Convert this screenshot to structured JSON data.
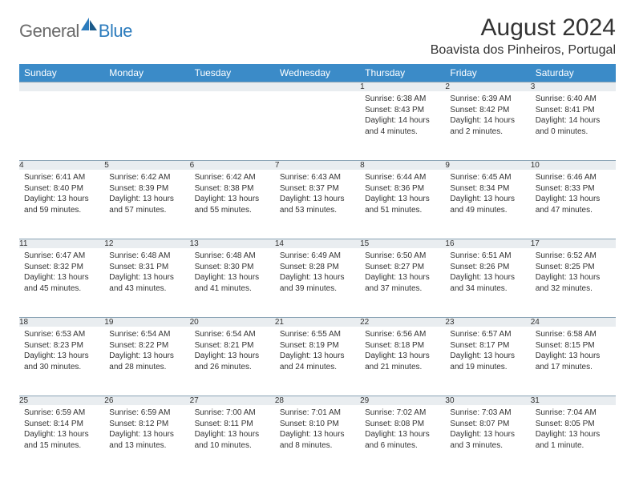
{
  "logo": {
    "general": "General",
    "blue": "Blue"
  },
  "title": "August 2024",
  "location": "Boavista dos Pinheiros, Portugal",
  "colors": {
    "header_bg": "#3b8bc8",
    "header_text": "#ffffff",
    "daynum_bg": "#e9edf0",
    "border": "#8aa3b5",
    "logo_gray": "#6a6a6a",
    "logo_blue": "#2b7bbd"
  },
  "weekdays": [
    "Sunday",
    "Monday",
    "Tuesday",
    "Wednesday",
    "Thursday",
    "Friday",
    "Saturday"
  ],
  "weeks": [
    [
      {
        "day": "",
        "lines": []
      },
      {
        "day": "",
        "lines": []
      },
      {
        "day": "",
        "lines": []
      },
      {
        "day": "",
        "lines": []
      },
      {
        "day": "1",
        "lines": [
          "Sunrise: 6:38 AM",
          "Sunset: 8:43 PM",
          "Daylight: 14 hours and 4 minutes."
        ]
      },
      {
        "day": "2",
        "lines": [
          "Sunrise: 6:39 AM",
          "Sunset: 8:42 PM",
          "Daylight: 14 hours and 2 minutes."
        ]
      },
      {
        "day": "3",
        "lines": [
          "Sunrise: 6:40 AM",
          "Sunset: 8:41 PM",
          "Daylight: 14 hours and 0 minutes."
        ]
      }
    ],
    [
      {
        "day": "4",
        "lines": [
          "Sunrise: 6:41 AM",
          "Sunset: 8:40 PM",
          "Daylight: 13 hours and 59 minutes."
        ]
      },
      {
        "day": "5",
        "lines": [
          "Sunrise: 6:42 AM",
          "Sunset: 8:39 PM",
          "Daylight: 13 hours and 57 minutes."
        ]
      },
      {
        "day": "6",
        "lines": [
          "Sunrise: 6:42 AM",
          "Sunset: 8:38 PM",
          "Daylight: 13 hours and 55 minutes."
        ]
      },
      {
        "day": "7",
        "lines": [
          "Sunrise: 6:43 AM",
          "Sunset: 8:37 PM",
          "Daylight: 13 hours and 53 minutes."
        ]
      },
      {
        "day": "8",
        "lines": [
          "Sunrise: 6:44 AM",
          "Sunset: 8:36 PM",
          "Daylight: 13 hours and 51 minutes."
        ]
      },
      {
        "day": "9",
        "lines": [
          "Sunrise: 6:45 AM",
          "Sunset: 8:34 PM",
          "Daylight: 13 hours and 49 minutes."
        ]
      },
      {
        "day": "10",
        "lines": [
          "Sunrise: 6:46 AM",
          "Sunset: 8:33 PM",
          "Daylight: 13 hours and 47 minutes."
        ]
      }
    ],
    [
      {
        "day": "11",
        "lines": [
          "Sunrise: 6:47 AM",
          "Sunset: 8:32 PM",
          "Daylight: 13 hours and 45 minutes."
        ]
      },
      {
        "day": "12",
        "lines": [
          "Sunrise: 6:48 AM",
          "Sunset: 8:31 PM",
          "Daylight: 13 hours and 43 minutes."
        ]
      },
      {
        "day": "13",
        "lines": [
          "Sunrise: 6:48 AM",
          "Sunset: 8:30 PM",
          "Daylight: 13 hours and 41 minutes."
        ]
      },
      {
        "day": "14",
        "lines": [
          "Sunrise: 6:49 AM",
          "Sunset: 8:28 PM",
          "Daylight: 13 hours and 39 minutes."
        ]
      },
      {
        "day": "15",
        "lines": [
          "Sunrise: 6:50 AM",
          "Sunset: 8:27 PM",
          "Daylight: 13 hours and 37 minutes."
        ]
      },
      {
        "day": "16",
        "lines": [
          "Sunrise: 6:51 AM",
          "Sunset: 8:26 PM",
          "Daylight: 13 hours and 34 minutes."
        ]
      },
      {
        "day": "17",
        "lines": [
          "Sunrise: 6:52 AM",
          "Sunset: 8:25 PM",
          "Daylight: 13 hours and 32 minutes."
        ]
      }
    ],
    [
      {
        "day": "18",
        "lines": [
          "Sunrise: 6:53 AM",
          "Sunset: 8:23 PM",
          "Daylight: 13 hours and 30 minutes."
        ]
      },
      {
        "day": "19",
        "lines": [
          "Sunrise: 6:54 AM",
          "Sunset: 8:22 PM",
          "Daylight: 13 hours and 28 minutes."
        ]
      },
      {
        "day": "20",
        "lines": [
          "Sunrise: 6:54 AM",
          "Sunset: 8:21 PM",
          "Daylight: 13 hours and 26 minutes."
        ]
      },
      {
        "day": "21",
        "lines": [
          "Sunrise: 6:55 AM",
          "Sunset: 8:19 PM",
          "Daylight: 13 hours and 24 minutes."
        ]
      },
      {
        "day": "22",
        "lines": [
          "Sunrise: 6:56 AM",
          "Sunset: 8:18 PM",
          "Daylight: 13 hours and 21 minutes."
        ]
      },
      {
        "day": "23",
        "lines": [
          "Sunrise: 6:57 AM",
          "Sunset: 8:17 PM",
          "Daylight: 13 hours and 19 minutes."
        ]
      },
      {
        "day": "24",
        "lines": [
          "Sunrise: 6:58 AM",
          "Sunset: 8:15 PM",
          "Daylight: 13 hours and 17 minutes."
        ]
      }
    ],
    [
      {
        "day": "25",
        "lines": [
          "Sunrise: 6:59 AM",
          "Sunset: 8:14 PM",
          "Daylight: 13 hours and 15 minutes."
        ]
      },
      {
        "day": "26",
        "lines": [
          "Sunrise: 6:59 AM",
          "Sunset: 8:12 PM",
          "Daylight: 13 hours and 13 minutes."
        ]
      },
      {
        "day": "27",
        "lines": [
          "Sunrise: 7:00 AM",
          "Sunset: 8:11 PM",
          "Daylight: 13 hours and 10 minutes."
        ]
      },
      {
        "day": "28",
        "lines": [
          "Sunrise: 7:01 AM",
          "Sunset: 8:10 PM",
          "Daylight: 13 hours and 8 minutes."
        ]
      },
      {
        "day": "29",
        "lines": [
          "Sunrise: 7:02 AM",
          "Sunset: 8:08 PM",
          "Daylight: 13 hours and 6 minutes."
        ]
      },
      {
        "day": "30",
        "lines": [
          "Sunrise: 7:03 AM",
          "Sunset: 8:07 PM",
          "Daylight: 13 hours and 3 minutes."
        ]
      },
      {
        "day": "31",
        "lines": [
          "Sunrise: 7:04 AM",
          "Sunset: 8:05 PM",
          "Daylight: 13 hours and 1 minute."
        ]
      }
    ]
  ]
}
